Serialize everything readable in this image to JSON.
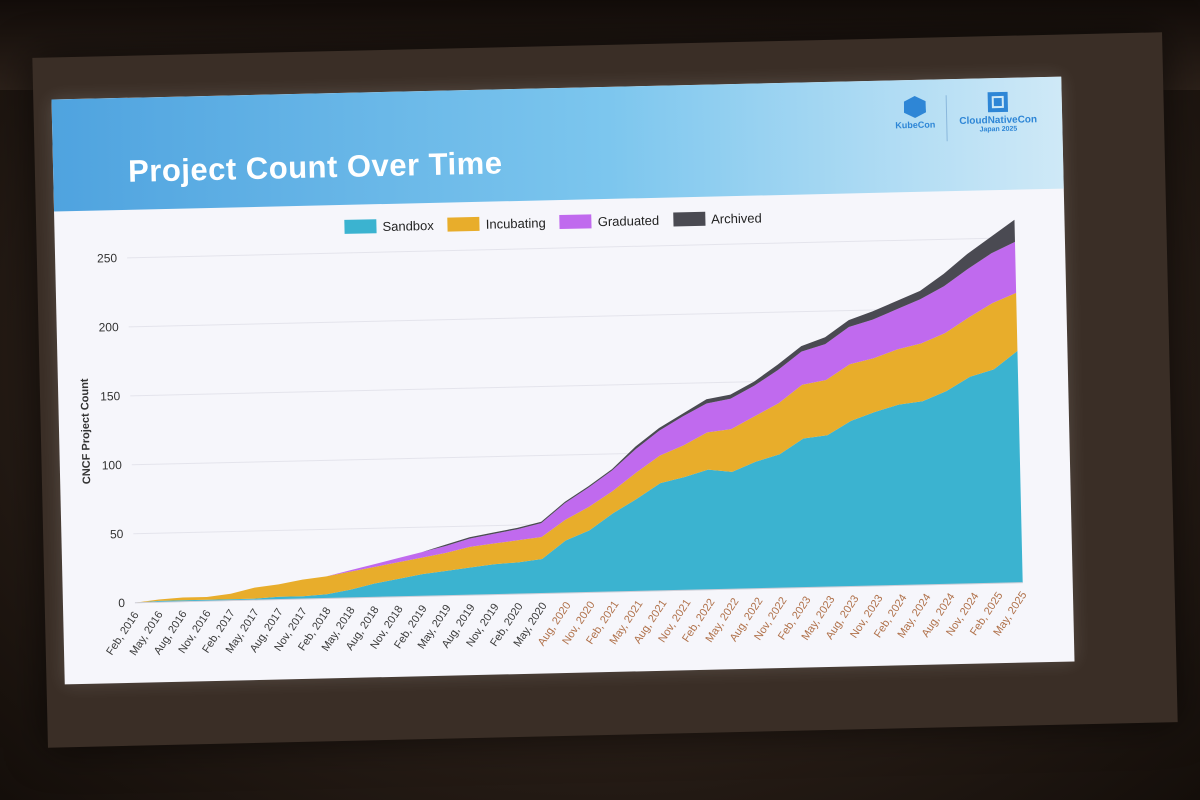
{
  "slide": {
    "title": "Project Count Over Time",
    "logos": {
      "kubecon": "KubeCon",
      "cloudnativecon": "CloudNativeCon",
      "event": "Japan 2025"
    }
  },
  "colors": {
    "sandbox": "#3bb3d0",
    "incubating": "#e8ad2b",
    "graduated": "#c06aee",
    "archived": "#4a4a52",
    "early_tick": "#3a3a3a",
    "late_tick": "#b0714a"
  },
  "chart_data": {
    "type": "area",
    "stacked": true,
    "title": "",
    "xlabel": "",
    "ylabel": "CNCF Project Count",
    "ylim": [
      0,
      250
    ],
    "yticks": [
      0,
      50,
      100,
      150,
      200,
      250
    ],
    "grid": true,
    "legend_position": "top-center",
    "x": [
      "Feb, 2016",
      "May, 2016",
      "Aug, 2016",
      "Nov, 2016",
      "Feb, 2017",
      "May, 2017",
      "Aug, 2017",
      "Nov, 2017",
      "Feb, 2018",
      "May, 2018",
      "Aug, 2018",
      "Nov, 2018",
      "Feb, 2019",
      "May, 2019",
      "Aug, 2019",
      "Nov, 2019",
      "Feb, 2020",
      "May, 2020",
      "Aug, 2020",
      "Nov, 2020",
      "Feb, 2021",
      "May, 2021",
      "Aug, 2021",
      "Nov, 2021",
      "Feb, 2022",
      "May, 2022",
      "Aug, 2022",
      "Nov, 2022",
      "Feb, 2023",
      "May, 2023",
      "Aug, 2023",
      "Nov, 2023",
      "Feb, 2024",
      "May, 2024",
      "Aug, 2024",
      "Nov, 2024",
      "Feb, 2025",
      "May, 2025"
    ],
    "series": [
      {
        "name": "Sandbox",
        "values": [
          0,
          1,
          1,
          1,
          1,
          1,
          2,
          2,
          3,
          6,
          10,
          13,
          16,
          18,
          20,
          22,
          23,
          25,
          38,
          45,
          57,
          67,
          78,
          82,
          87,
          85,
          92,
          97,
          108,
          110,
          120,
          126,
          131,
          133,
          140,
          150,
          155,
          168
        ]
      },
      {
        "name": "Incubating",
        "values": [
          0,
          1,
          2,
          2,
          4,
          8,
          9,
          12,
          13,
          13,
          12,
          12,
          12,
          13,
          15,
          15,
          16,
          16,
          15,
          17,
          16,
          19,
          20,
          23,
          27,
          31,
          33,
          37,
          39,
          40,
          41,
          39,
          40,
          42,
          42,
          43,
          48,
          42
        ]
      },
      {
        "name": "Graduated",
        "values": [
          0,
          0,
          0,
          0,
          0,
          0,
          0,
          0,
          0,
          1,
          2,
          3,
          4,
          5,
          6,
          7,
          8,
          10,
          12,
          14,
          15,
          17,
          18,
          21,
          21,
          22,
          22,
          24,
          24,
          26,
          27,
          28,
          29,
          32,
          34,
          35,
          36,
          37
        ]
      },
      {
        "name": "Archived",
        "values": [
          0,
          0,
          0,
          0,
          0,
          0,
          0,
          0,
          0,
          0,
          0,
          0,
          0,
          1,
          1,
          1,
          1,
          1,
          1,
          1,
          1,
          2,
          2,
          2,
          3,
          3,
          3,
          4,
          4,
          5,
          5,
          6,
          6,
          6,
          9,
          11,
          12,
          16
        ]
      }
    ]
  }
}
